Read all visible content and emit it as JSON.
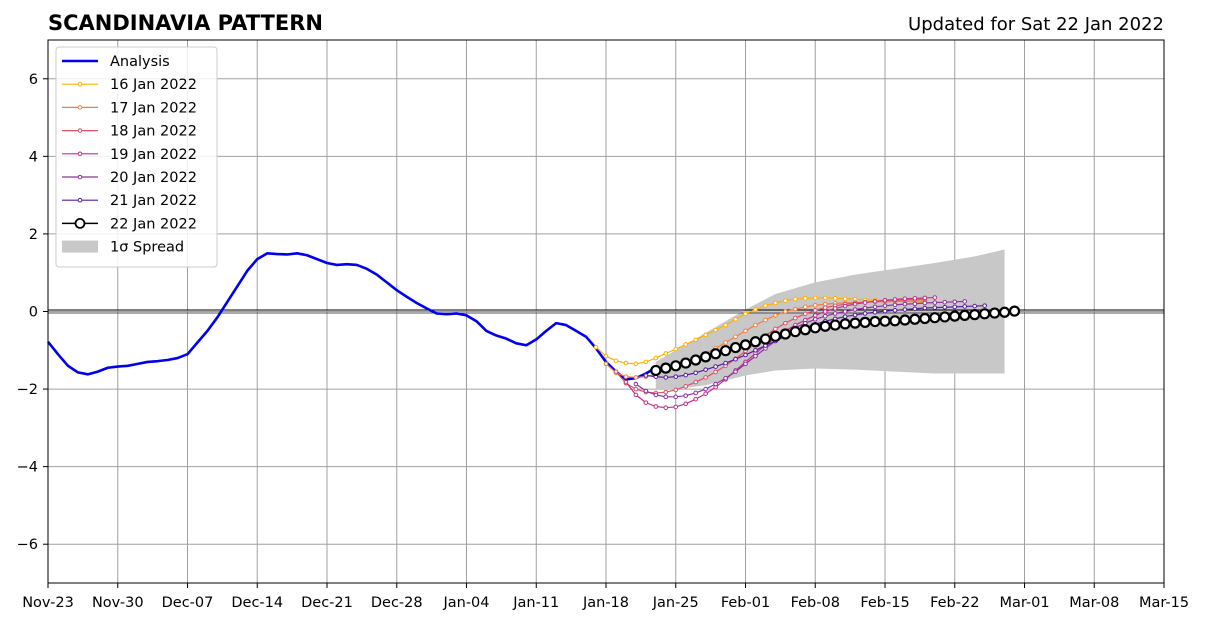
{
  "chart_data": {
    "type": "line",
    "title": "SCANDINAVIA PATTERN",
    "subtitle": "Updated for Sat 22 Jan 2022",
    "xlabel": "",
    "ylabel": "",
    "ylim": [
      -7,
      7
    ],
    "xlim": [
      "2021-11-23",
      "2022-03-15"
    ],
    "grid": true,
    "legend_position": "top-left",
    "x_ticks": [
      "Nov-23",
      "Nov-30",
      "Dec-07",
      "Dec-14",
      "Dec-21",
      "Dec-28",
      "Jan-04",
      "Jan-11",
      "Jan-18",
      "Jan-25",
      "Feb-01",
      "Feb-08",
      "Feb-15",
      "Feb-22",
      "Mar-01",
      "Mar-08",
      "Mar-15"
    ],
    "y_ticks": [
      "6",
      "4",
      "2",
      "0",
      "−2",
      "−4",
      "−6"
    ],
    "y_tick_values": [
      6,
      4,
      2,
      0,
      -2,
      -4,
      -6
    ],
    "analysis": {
      "name": "Analysis",
      "color": "#0000ee",
      "start": "2021-11-23",
      "values": [
        -0.78,
        -1.1,
        -1.4,
        -1.57,
        -1.62,
        -1.55,
        -1.45,
        -1.42,
        -1.4,
        -1.35,
        -1.3,
        -1.28,
        -1.25,
        -1.2,
        -1.1,
        -0.8,
        -0.5,
        -0.15,
        0.25,
        0.65,
        1.05,
        1.35,
        1.5,
        1.48,
        1.47,
        1.5,
        1.45,
        1.35,
        1.25,
        1.2,
        1.22,
        1.2,
        1.1,
        0.95,
        0.75,
        0.55,
        0.38,
        0.22,
        0.08,
        -0.05,
        -0.07,
        -0.05,
        -0.1,
        -0.25,
        -0.5,
        -0.62,
        -0.7,
        -0.82,
        -0.87,
        -0.72,
        -0.5,
        -0.3,
        -0.35,
        -0.5,
        -0.65,
        -0.95,
        -1.3,
        -1.55,
        -1.75,
        -1.72,
        -1.6,
        -1.45
      ]
    },
    "forecasts": [
      {
        "name": "16 Jan 2022",
        "color": "#ffb000",
        "start": "2022-01-17",
        "values": [
          -0.92,
          -1.15,
          -1.27,
          -1.33,
          -1.35,
          -1.3,
          -1.2,
          -1.08,
          -0.97,
          -0.85,
          -0.73,
          -0.6,
          -0.48,
          -0.35,
          -0.2,
          -0.06,
          0.05,
          0.15,
          0.22,
          0.28,
          0.32,
          0.34,
          0.35,
          0.35,
          0.34,
          0.33,
          0.32,
          0.3,
          0.29,
          0.28,
          0.27,
          0.26,
          0.25,
          0.24
        ]
      },
      {
        "name": "17 Jan 2022",
        "color": "#f08040",
        "start": "2022-01-18",
        "values": [
          -1.35,
          -1.58,
          -1.68,
          -1.7,
          -1.68,
          -1.62,
          -1.52,
          -1.42,
          -1.32,
          -1.2,
          -1.08,
          -0.95,
          -0.8,
          -0.65,
          -0.5,
          -0.35,
          -0.22,
          -0.1,
          0.0,
          0.06,
          0.12,
          0.16,
          0.19,
          0.21,
          0.22,
          0.23,
          0.24,
          0.25,
          0.25,
          0.26,
          0.26,
          0.27,
          0.27
        ]
      },
      {
        "name": "18 Jan 2022",
        "color": "#e05068",
        "start": "2022-01-19",
        "values": [
          -1.55,
          -1.85,
          -2.0,
          -2.08,
          -2.1,
          -2.08,
          -2.02,
          -1.93,
          -1.82,
          -1.7,
          -1.56,
          -1.4,
          -1.22,
          -1.02,
          -0.82,
          -0.62,
          -0.45,
          -0.3,
          -0.17,
          -0.06,
          0.03,
          0.1,
          0.15,
          0.19,
          0.22,
          0.24,
          0.26,
          0.28,
          0.29,
          0.3,
          0.31,
          0.32
        ]
      },
      {
        "name": "19 Jan 2022",
        "color": "#c03090",
        "start": "2022-01-20",
        "values": [
          -1.82,
          -2.15,
          -2.35,
          -2.45,
          -2.48,
          -2.46,
          -2.38,
          -2.26,
          -2.12,
          -1.95,
          -1.75,
          -1.52,
          -1.3,
          -1.08,
          -0.87,
          -0.68,
          -0.5,
          -0.35,
          -0.22,
          -0.1,
          0.0,
          0.08,
          0.14,
          0.19,
          0.23,
          0.26,
          0.29,
          0.31,
          0.33,
          0.34,
          0.35,
          0.36
        ]
      },
      {
        "name": "20 Jan 2022",
        "color": "#9030a0",
        "start": "2022-01-21",
        "values": [
          -1.87,
          -2.05,
          -2.15,
          -2.2,
          -2.2,
          -2.17,
          -2.1,
          -2.0,
          -1.87,
          -1.72,
          -1.55,
          -1.35,
          -1.15,
          -0.95,
          -0.76,
          -0.58,
          -0.42,
          -0.3,
          -0.2,
          -0.12,
          -0.05,
          0.0,
          0.05,
          0.09,
          0.12,
          0.15,
          0.17,
          0.19,
          0.2,
          0.22,
          0.23,
          0.24,
          0.25,
          0.26
        ]
      },
      {
        "name": "21 Jan 2022",
        "color": "#5a1aa0",
        "start": "2022-01-22",
        "values": [
          -1.65,
          -1.68,
          -1.7,
          -1.68,
          -1.64,
          -1.58,
          -1.5,
          -1.42,
          -1.33,
          -1.23,
          -1.12,
          -1.0,
          -0.88,
          -0.76,
          -0.64,
          -0.52,
          -0.42,
          -0.33,
          -0.25,
          -0.19,
          -0.13,
          -0.09,
          -0.05,
          -0.02,
          0.01,
          0.03,
          0.05,
          0.07,
          0.09,
          0.1,
          0.11,
          0.12,
          0.13,
          0.14,
          0.15
        ]
      },
      {
        "name": "22 Jan 2022",
        "color": "#000000",
        "start": "2022-01-23",
        "values": [
          -1.52,
          -1.46,
          -1.4,
          -1.33,
          -1.25,
          -1.17,
          -1.09,
          -1.01,
          -0.93,
          -0.86,
          -0.78,
          -0.71,
          -0.64,
          -0.58,
          -0.52,
          -0.47,
          -0.42,
          -0.38,
          -0.35,
          -0.32,
          -0.3,
          -0.28,
          -0.26,
          -0.25,
          -0.24,
          -0.22,
          -0.2,
          -0.18,
          -0.16,
          -0.14,
          -0.12,
          -0.1,
          -0.08,
          -0.06,
          -0.04,
          -0.02,
          0.01
        ]
      }
    ],
    "spread": {
      "name": "1σ Spread",
      "color": "#c8c8c8",
      "x": [
        "2022-01-23",
        "2022-01-25",
        "2022-01-28",
        "2022-02-01",
        "2022-02-04",
        "2022-02-08",
        "2022-02-12",
        "2022-02-16",
        "2022-02-20",
        "2022-02-24",
        "2022-02-27"
      ],
      "upper": [
        -1.3,
        -1.0,
        -0.55,
        0.05,
        0.45,
        0.75,
        0.95,
        1.1,
        1.25,
        1.42,
        1.6
      ],
      "lower": [
        -2.0,
        -2.0,
        -1.9,
        -1.65,
        -1.52,
        -1.47,
        -1.5,
        -1.55,
        -1.6,
        -1.6,
        -1.6
      ]
    }
  }
}
